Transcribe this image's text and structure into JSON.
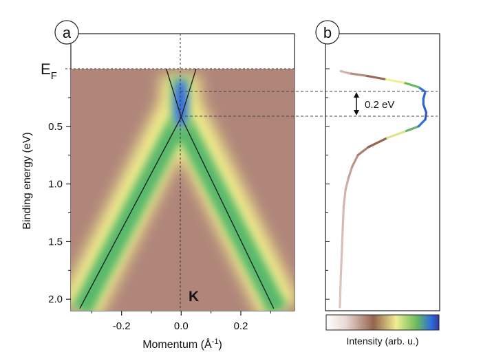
{
  "panels": {
    "a": {
      "label": "a"
    },
    "b": {
      "label": "b"
    }
  },
  "chart_data": [
    {
      "type": "heatmap",
      "panel": "a",
      "xlabel": "Momentum (Å",
      "xlabel_exp": "-1",
      "xlabel_close": ")",
      "ylabel": "Binding energy (eV)",
      "xlim": [
        -0.37,
        0.38
      ],
      "ylim": [
        0.0,
        2.1
      ],
      "y_inverted": true,
      "x_ticks": [
        {
          "value": -0.2,
          "label": "-0.2"
        },
        {
          "value": 0.0,
          "label": "0.0"
        },
        {
          "value": 0.2,
          "label": "0.2"
        }
      ],
      "y_ticks": [
        {
          "value": 0.5,
          "label": "0.5"
        },
        {
          "value": 1.0,
          "label": "1.0"
        },
        {
          "value": 1.5,
          "label": "1.5"
        },
        {
          "value": 2.0,
          "label": "2.0"
        }
      ],
      "fermi_level": {
        "label_main": "E",
        "label_sub": "F",
        "energy": 0.0
      },
      "k_point": {
        "label": "K",
        "momentum": 0.0
      },
      "dirac_points_eV": [
        0.2,
        0.42
      ],
      "dispersion_lines": [
        {
          "points": [
            [
              -0.34,
              2.08
            ],
            [
              0.0,
              0.42
            ],
            [
              0.05,
              0.0
            ]
          ]
        },
        {
          "points": [
            [
              0.31,
              2.08
            ],
            [
              0.0,
              0.42
            ],
            [
              -0.05,
              0.0
            ]
          ]
        }
      ]
    },
    {
      "type": "line",
      "panel": "b",
      "xlabel": "",
      "ylabel": "",
      "ylim": [
        0.0,
        2.1
      ],
      "y_inverted": true,
      "points": [
        [
          0.05,
          2.07
        ],
        [
          0.06,
          1.8
        ],
        [
          0.07,
          1.6
        ],
        [
          0.08,
          1.4
        ],
        [
          0.09,
          1.2
        ],
        [
          0.11,
          1.05
        ],
        [
          0.14,
          0.95
        ],
        [
          0.18,
          0.85
        ],
        [
          0.24,
          0.75
        ],
        [
          0.35,
          0.68
        ],
        [
          0.55,
          0.6
        ],
        [
          0.75,
          0.54
        ],
        [
          0.88,
          0.5
        ],
        [
          0.95,
          0.44
        ],
        [
          0.96,
          0.38
        ],
        [
          0.93,
          0.31
        ],
        [
          0.93,
          0.26
        ],
        [
          0.95,
          0.2
        ],
        [
          0.88,
          0.16
        ],
        [
          0.72,
          0.12
        ],
        [
          0.52,
          0.09
        ],
        [
          0.32,
          0.06
        ],
        [
          0.15,
          0.04
        ],
        [
          0.06,
          0.02
        ]
      ],
      "annotation": {
        "label": "0.2 eV",
        "from_eV": 0.2,
        "to_eV": 0.42
      }
    }
  ],
  "colorbar": {
    "label": "Intensity (arb. u.)",
    "colors": [
      "#ffffff",
      "#e8d3cf",
      "#9a6a58",
      "#efef9a",
      "#79c060",
      "#2b6de0",
      "#3a3aa0"
    ]
  },
  "colors": {
    "background_map": "#b0867a",
    "band_core": "#2f66e0",
    "band_mid": "#56b86a",
    "band_edge": "#f2ec8c"
  }
}
